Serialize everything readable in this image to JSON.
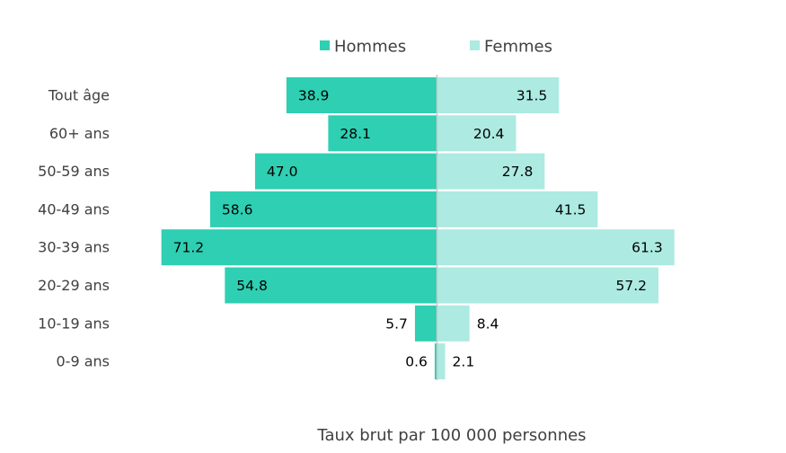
{
  "chart_data": {
    "type": "bar",
    "orientation": "horizontal",
    "layout": "population-pyramid",
    "categories": [
      "Tout âge",
      "60+ ans",
      "50-59 ans",
      "40-49 ans",
      "30-39 ans",
      "20-29 ans",
      "10-19 ans",
      "0-9 ans"
    ],
    "series": [
      {
        "name": "Hommes",
        "color": "#2ecfb2",
        "side": "left",
        "values": [
          38.9,
          28.1,
          47.0,
          58.6,
          71.2,
          54.8,
          5.7,
          0.6
        ]
      },
      {
        "name": "Femmes",
        "color": "#adeae1",
        "side": "right",
        "values": [
          31.5,
          20.4,
          27.8,
          41.5,
          61.3,
          57.2,
          8.4,
          2.1
        ]
      }
    ],
    "xlabel": "Taux brut par 100 000 personnes",
    "ylabel": "",
    "xlim": [
      0,
      72
    ],
    "legend": "top-center",
    "grid": false,
    "data_labels": true
  }
}
